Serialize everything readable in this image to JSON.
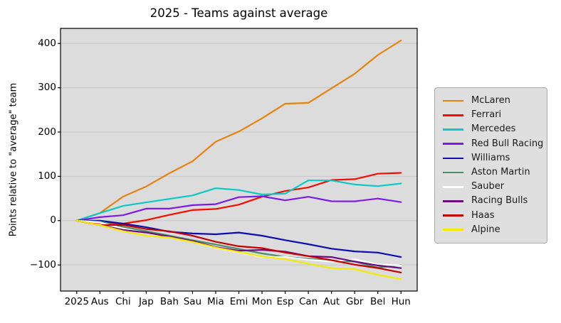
{
  "chart_data": {
    "type": "line",
    "title": "2025 - Teams against average",
    "xlabel": "",
    "ylabel": "Points relative to \"average\" team",
    "categories": [
      "2025",
      "Aus",
      "Chi",
      "Jap",
      "Bah",
      "Sau",
      "Mia",
      "Emi",
      "Mon",
      "Esp",
      "Can",
      "Aut",
      "Gbr",
      "Bel",
      "Hun"
    ],
    "yticks": [
      -100,
      0,
      100,
      200,
      300,
      400
    ],
    "ylim": [
      -159,
      434
    ],
    "grid": "horizontal",
    "legend_position": "right-outside",
    "figure_bg": "#ffffff",
    "plot_bg": "#dcdcdc",
    "grid_color": "#c6c6c6",
    "frame_color": "#000000",
    "text_color": "#000000",
    "series": [
      {
        "name": "McLaren",
        "color": "#e8820e",
        "values": [
          0,
          16.9,
          54.2,
          77.1,
          107.0,
          133.9,
          178.2,
          201.1,
          231.0,
          263.9,
          265.8,
          298.7,
          331.6,
          373.9,
          406.8
        ]
      },
      {
        "name": "Ferrari",
        "color": "#f20d00",
        "values": [
          0,
          -5.1,
          -6.8,
          1.1,
          13.0,
          23.9,
          26.2,
          36.1,
          54.0,
          66.9,
          74.8,
          91.7,
          93.6,
          105.9,
          107.8
        ]
      },
      {
        "name": "Mercedes",
        "color": "#0bc9c4",
        "values": [
          0,
          16.9,
          33.2,
          41.1,
          49.0,
          56.9,
          73.2,
          69.1,
          59.0,
          60.9,
          90.8,
          90.7,
          81.6,
          77.9,
          83.8
        ]
      },
      {
        "name": "Red Bull Racing",
        "color": "#7b1be8",
        "values": [
          0,
          7.9,
          12.2,
          27.1,
          27.0,
          34.9,
          37.2,
          53.1,
          55.0,
          45.9,
          53.8,
          43.7,
          43.6,
          49.9,
          41.8
        ]
      },
      {
        "name": "Williams",
        "color": "#0d0db0",
        "values": [
          0,
          -0.1,
          -6.8,
          -14.9,
          -25.0,
          -29.1,
          -30.8,
          -26.9,
          -34.0,
          -44.1,
          -53.2,
          -63.3,
          -69.4,
          -72.1,
          -82.2
        ]
      },
      {
        "name": "Aston Martin",
        "color": "#4a8f68",
        "values": [
          0,
          -2.1,
          -13.8,
          -23.9,
          -34.0,
          -44.1,
          -53.8,
          -63.9,
          -74.0,
          -82.1,
          -86.2,
          -90.3,
          -92.4,
          -106.1,
          -100.2
        ]
      },
      {
        "name": "Sauber",
        "color": "#ffffff",
        "values": [
          0,
          -4.1,
          -17.8,
          -27.9,
          -38.0,
          -48.1,
          -61.8,
          -71.9,
          -82.0,
          -82.1,
          -88.2,
          -92.3,
          -87.4,
          -99.1,
          -101.2
        ]
      },
      {
        "name": "Racing Bulls",
        "color": "#700880",
        "values": [
          0,
          -10.1,
          -20.8,
          -26.9,
          -36.0,
          -46.1,
          -59.8,
          -67.9,
          -66.0,
          -70.1,
          -80.2,
          -82.3,
          -92.4,
          -101.1,
          -107.2
        ]
      },
      {
        "name": "Haas",
        "color": "#c40000",
        "values": [
          0,
          -10.1,
          -9.8,
          -18.9,
          -24.0,
          -34.1,
          -47.8,
          -57.9,
          -62.0,
          -72.1,
          -80.2,
          -89.3,
          -99.4,
          -107.1,
          -117.2
        ]
      },
      {
        "name": "Alpine",
        "color": "#f2eb00",
        "values": [
          0,
          -10.1,
          -23.8,
          -33.9,
          -38.0,
          -48.1,
          -60.8,
          -70.9,
          -81.0,
          -87.1,
          -97.2,
          -107.3,
          -109.4,
          -122.1,
          -132.2
        ]
      }
    ]
  }
}
